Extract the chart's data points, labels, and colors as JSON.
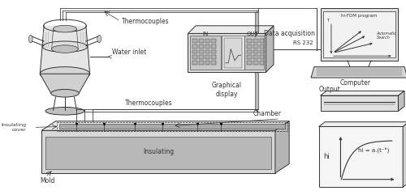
{
  "bg_color": "#ffffff",
  "fig_width": 5.0,
  "fig_height": 2.41,
  "dpi": 100,
  "labels": {
    "thermocouples_top": "Thermocouples",
    "water_inlet": "Water inlet",
    "graphical_display": "Graphical\ndisplay",
    "data_acquisition": "Data acquisition",
    "in_label": "IN",
    "out_label": "OUT",
    "rs232": "RS 232",
    "computer": "Computer",
    "output": "Output",
    "thermocouples_bottom": "Thermocouples",
    "chamber": "Chamber",
    "insulating_cover": "Insulating\ncover",
    "mold": "Mold",
    "insulating": "Insulating",
    "hi_fdm": "hi-FDM program",
    "automatic_search": "Automatic\nSearch",
    "hi_label": "hi",
    "hi_formula": "hi = a.(t⁻ᵇ)",
    "t_label": "T"
  },
  "line_color": "#333333"
}
